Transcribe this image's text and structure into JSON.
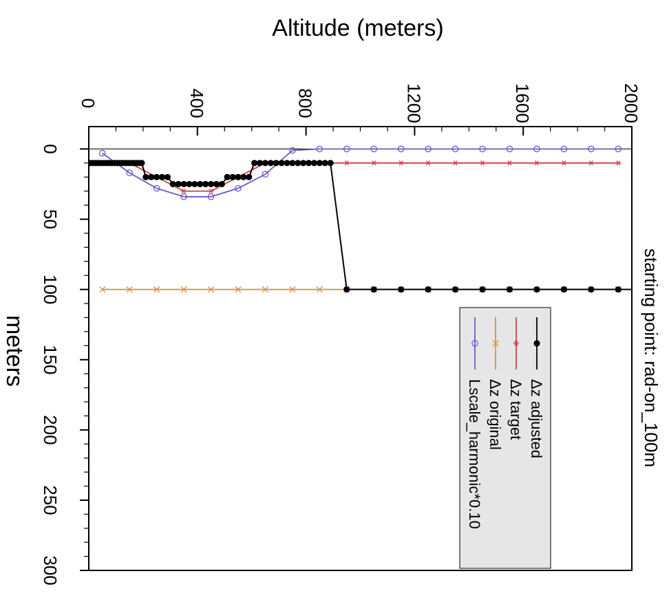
{
  "chart_data": {
    "type": "line",
    "title": "starting point: rad-on_100m",
    "xlabel": "Altitude (meters)",
    "ylabel": "meters",
    "xlim": [
      0,
      2000
    ],
    "ylim": [
      0,
      300
    ],
    "xticks": [
      0,
      400,
      800,
      1200,
      1600,
      2000
    ],
    "yticks": [
      0,
      50,
      100,
      150,
      200,
      250,
      300
    ],
    "reference_line": 0,
    "legend_position": "bottom-right",
    "series": [
      {
        "name": "Δz adjusted",
        "color": "#000000",
        "marker": "filled-circle",
        "x": [
          5,
          15,
          25,
          35,
          45,
          55,
          65,
          75,
          85,
          95,
          105,
          115,
          125,
          135,
          145,
          155,
          165,
          175,
          185,
          195,
          210,
          230,
          250,
          270,
          290,
          310,
          330,
          350,
          370,
          390,
          410,
          430,
          450,
          470,
          490,
          510,
          530,
          550,
          570,
          590,
          610,
          630,
          650,
          670,
          690,
          710,
          730,
          750,
          770,
          790,
          810,
          830,
          850,
          870,
          890,
          950,
          1050,
          1150,
          1250,
          1350,
          1450,
          1550,
          1650,
          1750,
          1850,
          1950,
          2000
        ],
        "y": [
          10,
          10,
          10,
          10,
          10,
          10,
          10,
          10,
          10,
          10,
          10,
          10,
          10,
          10,
          10,
          10,
          10,
          10,
          10,
          10,
          20,
          20,
          20,
          20,
          20,
          25,
          25,
          25,
          25,
          25,
          25,
          25,
          25,
          25,
          25,
          20,
          20,
          20,
          20,
          20,
          10,
          10,
          10,
          10,
          10,
          10,
          10,
          10,
          10,
          10,
          10,
          10,
          10,
          10,
          10,
          100,
          100,
          100,
          100,
          100,
          100,
          100,
          100,
          100,
          100,
          100,
          100
        ]
      },
      {
        "name": "Δz target",
        "color": "#cc4444",
        "marker": "star",
        "x": [
          50,
          150,
          250,
          350,
          450,
          550,
          650,
          750,
          850,
          950,
          1050,
          1150,
          1250,
          1350,
          1450,
          1550,
          1650,
          1750,
          1850,
          1950
        ],
        "y": [
          10,
          10,
          20,
          30,
          30,
          20,
          10,
          10,
          10,
          10,
          10,
          10,
          10,
          10,
          10,
          10,
          10,
          10,
          10,
          10
        ]
      },
      {
        "name": "Δz original",
        "color": "#d4954a",
        "marker": "x",
        "x": [
          50,
          150,
          250,
          350,
          450,
          550,
          650,
          750,
          850,
          950,
          1050,
          1150,
          1250,
          1350,
          1450,
          1550,
          1650,
          1750,
          1850,
          1950
        ],
        "y": [
          100,
          100,
          100,
          100,
          100,
          100,
          100,
          100,
          100,
          100,
          100,
          100,
          100,
          100,
          100,
          100,
          100,
          100,
          100,
          100
        ]
      },
      {
        "name": "Lscale_harmonic*0.10",
        "color": "#6a5acd",
        "marker": "open-circle",
        "x": [
          50,
          150,
          250,
          350,
          450,
          550,
          650,
          750,
          850,
          950,
          1050,
          1150,
          1250,
          1350,
          1450,
          1550,
          1650,
          1750,
          1850,
          1950
        ],
        "y": [
          3,
          17,
          28,
          34,
          34,
          28,
          18,
          1,
          0,
          0,
          0,
          0,
          0,
          0,
          0,
          0,
          0,
          0,
          0,
          0
        ]
      }
    ]
  }
}
